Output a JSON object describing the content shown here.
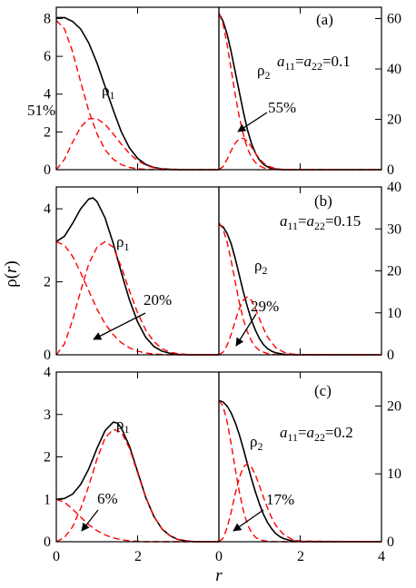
{
  "figure": {
    "ylabel": "ρ(r)",
    "xlabel": "r",
    "x_ticks": [
      "0",
      "2",
      "4"
    ]
  },
  "chart_data": [
    {
      "type": "line",
      "panel": "(a)",
      "side": "left",
      "xlim": [
        0,
        4
      ],
      "ylim": [
        0,
        8.6
      ],
      "yticks": [
        0,
        2,
        4,
        6,
        8
      ],
      "curve_label": "ρ₁",
      "annotation": "51%",
      "arrow": false,
      "series": [
        {
          "name": "ρ₁",
          "style": "solid",
          "color": "#000000",
          "x": [
            0,
            0.2,
            0.4,
            0.6,
            0.8,
            1.0,
            1.2,
            1.4,
            1.6,
            1.8,
            2.0,
            2.2,
            2.4,
            2.6,
            2.8,
            3.0,
            3.2,
            3.4,
            3.6,
            3.8,
            4.0
          ],
          "y": [
            8.05,
            8.05,
            7.85,
            7.45,
            6.7,
            5.65,
            4.4,
            3.15,
            2.0,
            1.15,
            0.6,
            0.28,
            0.12,
            0.05,
            0.02,
            0.01,
            0,
            0,
            0,
            0,
            0
          ]
        },
        {
          "name": "",
          "style": "dashed",
          "color": "#ff0000",
          "x": [
            0,
            0.2,
            0.4,
            0.6,
            0.8,
            1.0,
            1.2,
            1.4,
            1.6,
            1.8,
            2.0,
            2.2,
            2.4,
            2.6,
            2.8,
            3.0,
            3.2,
            3.4,
            3.6,
            3.8,
            4.0
          ],
          "y": [
            7.9,
            7.45,
            6.25,
            4.65,
            3.1,
            1.9,
            1.05,
            0.55,
            0.27,
            0.12,
            0.05,
            0.02,
            0.01,
            0,
            0,
            0,
            0,
            0,
            0,
            0,
            0
          ]
        },
        {
          "name": "",
          "style": "dashed",
          "color": "#ff0000",
          "x": [
            0,
            0.2,
            0.4,
            0.6,
            0.8,
            1.0,
            1.2,
            1.4,
            1.6,
            1.8,
            2.0,
            2.2,
            2.4,
            2.6,
            2.8,
            3.0,
            3.2,
            3.4,
            3.6,
            3.8,
            4.0
          ],
          "y": [
            0,
            0.55,
            1.45,
            2.25,
            2.7,
            2.7,
            2.4,
            1.9,
            1.35,
            0.85,
            0.48,
            0.24,
            0.1,
            0.04,
            0.01,
            0,
            0,
            0,
            0,
            0,
            0
          ]
        }
      ]
    },
    {
      "type": "line",
      "panel": "(a)",
      "side": "right",
      "xlim": [
        0,
        4
      ],
      "ylim": [
        0,
        64.5
      ],
      "yticks": [
        0,
        20,
        40,
        60
      ],
      "curve_label": "ρ₂",
      "param_label": "a₁₁=a₂₂=0.1",
      "annotation": "55%",
      "arrow": true,
      "series": [
        {
          "name": "ρ₂",
          "style": "solid",
          "color": "#000000",
          "x": [
            0,
            0.1,
            0.2,
            0.3,
            0.4,
            0.5,
            0.6,
            0.7,
            0.8,
            0.9,
            1.0,
            1.1,
            1.2,
            1.3,
            1.4,
            1.6,
            1.8,
            2.0,
            2.4,
            3.0,
            4.0
          ],
          "y": [
            62,
            59,
            54,
            47,
            39,
            31,
            23,
            16,
            10.5,
            6.5,
            3.8,
            2.1,
            1.1,
            0.55,
            0.25,
            0.05,
            0.01,
            0,
            0,
            0,
            0
          ]
        },
        {
          "name": "",
          "style": "dashed",
          "color": "#ff0000",
          "x": [
            0,
            0.1,
            0.2,
            0.3,
            0.4,
            0.5,
            0.6,
            0.7,
            0.8,
            0.9,
            1.0,
            1.1,
            1.2,
            1.4,
            1.6,
            2.0,
            4.0
          ],
          "y": [
            62,
            58,
            50,
            40,
            30,
            21,
            14,
            8.5,
            5,
            2.8,
            1.5,
            0.75,
            0.35,
            0.07,
            0.01,
            0,
            0
          ]
        },
        {
          "name": "",
          "style": "dashed",
          "color": "#ff0000",
          "x": [
            0,
            0.1,
            0.2,
            0.3,
            0.4,
            0.5,
            0.6,
            0.7,
            0.8,
            0.9,
            1.0,
            1.1,
            1.2,
            1.4,
            1.6,
            2.0,
            4.0
          ],
          "y": [
            0,
            1.2,
            4,
            7.5,
            10.5,
            12.3,
            12.5,
            11.3,
            9,
            6.5,
            4.3,
            2.6,
            1.5,
            0.4,
            0.08,
            0,
            0
          ]
        }
      ]
    },
    {
      "type": "line",
      "panel": "(b)",
      "side": "left",
      "xlim": [
        0,
        4
      ],
      "ylim": [
        0,
        4.6
      ],
      "yticks": [
        0,
        2,
        4
      ],
      "curve_label": "ρ₁",
      "annotation": "20%",
      "arrow": true,
      "series": [
        {
          "name": "ρ₁",
          "style": "solid",
          "color": "#000000",
          "x": [
            0,
            0.2,
            0.4,
            0.6,
            0.8,
            0.9,
            1.0,
            1.2,
            1.4,
            1.6,
            1.8,
            2.0,
            2.2,
            2.4,
            2.6,
            2.8,
            3.0,
            3.2,
            3.4,
            3.6,
            4.0
          ],
          "y": [
            3.1,
            3.25,
            3.6,
            4.0,
            4.27,
            4.3,
            4.2,
            3.75,
            3.05,
            2.25,
            1.5,
            0.9,
            0.48,
            0.23,
            0.1,
            0.04,
            0.01,
            0,
            0,
            0,
            0
          ]
        },
        {
          "name": "",
          "style": "dashed",
          "color": "#ff0000",
          "x": [
            0,
            0.2,
            0.4,
            0.6,
            0.8,
            1.0,
            1.2,
            1.4,
            1.6,
            1.8,
            2.0,
            2.2,
            2.4,
            2.6,
            2.8,
            3.0,
            4.0
          ],
          "y": [
            3.1,
            3.0,
            2.7,
            2.25,
            1.75,
            1.25,
            0.85,
            0.55,
            0.33,
            0.19,
            0.1,
            0.05,
            0.02,
            0.01,
            0,
            0,
            0
          ]
        },
        {
          "name": "",
          "style": "dashed",
          "color": "#ff0000",
          "x": [
            0,
            0.2,
            0.4,
            0.6,
            0.8,
            1.0,
            1.2,
            1.4,
            1.6,
            1.8,
            2.0,
            2.2,
            2.4,
            2.6,
            2.8,
            3.0,
            3.2,
            3.4,
            4.0
          ],
          "y": [
            0,
            0.3,
            0.95,
            1.75,
            2.5,
            2.95,
            3.1,
            2.95,
            2.4,
            1.75,
            1.15,
            0.68,
            0.36,
            0.17,
            0.07,
            0.03,
            0.01,
            0,
            0
          ]
        }
      ]
    },
    {
      "type": "line",
      "panel": "(b)",
      "side": "right",
      "xlim": [
        0,
        4
      ],
      "ylim": [
        0,
        40
      ],
      "yticks": [
        0,
        10,
        20,
        30,
        40
      ],
      "curve_label": "ρ₂",
      "param_label": "a₁₁=a₂₂=0.15",
      "annotation": "29%",
      "arrow": true,
      "series": [
        {
          "name": "ρ₂",
          "style": "solid",
          "color": "#000000",
          "x": [
            0,
            0.1,
            0.2,
            0.3,
            0.4,
            0.5,
            0.6,
            0.7,
            0.8,
            0.9,
            1.0,
            1.1,
            1.2,
            1.3,
            1.4,
            1.6,
            1.8,
            2.0,
            2.4,
            3.0,
            4.0
          ],
          "y": [
            31,
            30.5,
            29,
            26.5,
            23,
            19,
            15,
            11.5,
            8.3,
            5.8,
            3.8,
            2.4,
            1.45,
            0.85,
            0.48,
            0.13,
            0.03,
            0,
            0,
            0,
            0
          ]
        },
        {
          "name": "",
          "style": "dashed",
          "color": "#ff0000",
          "x": [
            0,
            0.1,
            0.2,
            0.3,
            0.4,
            0.5,
            0.6,
            0.7,
            0.8,
            0.9,
            1.0,
            1.2,
            1.4,
            1.6,
            2.0,
            4.0
          ],
          "y": [
            31.5,
            30,
            27,
            22.5,
            17.5,
            12.5,
            8.5,
            5.5,
            3.3,
            1.9,
            1.0,
            0.25,
            0.05,
            0.01,
            0,
            0
          ]
        },
        {
          "name": "",
          "style": "dashed",
          "color": "#ff0000",
          "x": [
            0,
            0.1,
            0.2,
            0.3,
            0.4,
            0.5,
            0.6,
            0.7,
            0.8,
            0.9,
            1.0,
            1.1,
            1.2,
            1.4,
            1.6,
            1.8,
            2.0,
            4.0
          ],
          "y": [
            0,
            0.6,
            2.2,
            4.8,
            8,
            11,
            13,
            13.8,
            13,
            11,
            8.5,
            6.2,
            4.2,
            1.7,
            0.6,
            0.18,
            0.05,
            0
          ]
        }
      ]
    },
    {
      "type": "line",
      "panel": "(c)",
      "side": "left",
      "xlim": [
        0,
        4
      ],
      "ylim": [
        0,
        4
      ],
      "yticks": [
        0,
        1,
        2,
        3,
        4
      ],
      "curve_label": "ρ₁",
      "annotation": "6%",
      "arrow": true,
      "series": [
        {
          "name": "ρ₁",
          "style": "solid",
          "color": "#000000",
          "x": [
            0,
            0.2,
            0.4,
            0.6,
            0.8,
            1.0,
            1.2,
            1.4,
            1.5,
            1.6,
            1.8,
            2.0,
            2.2,
            2.4,
            2.6,
            2.8,
            3.0,
            3.2,
            3.4,
            3.6,
            4.0
          ],
          "y": [
            1.0,
            1.02,
            1.12,
            1.35,
            1.72,
            2.2,
            2.62,
            2.82,
            2.8,
            2.68,
            2.25,
            1.65,
            1.05,
            0.6,
            0.3,
            0.14,
            0.05,
            0.02,
            0,
            0,
            0
          ]
        },
        {
          "name": "",
          "style": "dashed",
          "color": "#ff0000",
          "x": [
            0,
            0.2,
            0.4,
            0.6,
            0.8,
            1.0,
            1.2,
            1.4,
            1.6,
            1.8,
            2.0,
            2.2,
            2.4,
            2.6,
            2.8,
            3.0,
            4.0
          ],
          "y": [
            1.0,
            0.93,
            0.77,
            0.58,
            0.4,
            0.26,
            0.16,
            0.09,
            0.05,
            0.02,
            0.01,
            0,
            0,
            0,
            0,
            0,
            0
          ]
        },
        {
          "name": "",
          "style": "dashed",
          "color": "#ff0000",
          "x": [
            0,
            0.2,
            0.4,
            0.6,
            0.8,
            1.0,
            1.2,
            1.4,
            1.6,
            1.8,
            2.0,
            2.2,
            2.4,
            2.6,
            2.8,
            3.0,
            3.2,
            3.4,
            4.0
          ],
          "y": [
            0,
            0.1,
            0.35,
            0.78,
            1.32,
            1.95,
            2.45,
            2.65,
            2.58,
            2.2,
            1.62,
            1.05,
            0.6,
            0.3,
            0.14,
            0.05,
            0.02,
            0,
            0
          ]
        }
      ]
    },
    {
      "type": "line",
      "panel": "(c)",
      "side": "right",
      "xlim": [
        0,
        4
      ],
      "ylim": [
        0,
        25
      ],
      "yticks": [
        0,
        10,
        20
      ],
      "curve_label": "ρ₂",
      "param_label": "a₁₁=a₂₂=0.2",
      "annotation": "17%",
      "arrow": true,
      "series": [
        {
          "name": "ρ₂",
          "style": "solid",
          "color": "#000000",
          "x": [
            0,
            0.1,
            0.2,
            0.3,
            0.4,
            0.5,
            0.6,
            0.7,
            0.8,
            0.9,
            1.0,
            1.1,
            1.2,
            1.3,
            1.4,
            1.5,
            1.6,
            1.8,
            2.0,
            2.4,
            4.0
          ],
          "y": [
            20.8,
            20.6,
            20,
            19,
            17.6,
            15.8,
            13.7,
            11.5,
            9.3,
            7.3,
            5.5,
            4.0,
            2.8,
            1.9,
            1.2,
            0.75,
            0.45,
            0.12,
            0.03,
            0,
            0
          ]
        },
        {
          "name": "",
          "style": "dashed",
          "color": "#ff0000",
          "x": [
            0,
            0.1,
            0.2,
            0.3,
            0.4,
            0.5,
            0.6,
            0.7,
            0.8,
            0.9,
            1.0,
            1.2,
            1.4,
            1.6,
            2.0,
            4.0
          ],
          "y": [
            20.8,
            20,
            17.8,
            14.5,
            10.8,
            7.4,
            4.6,
            2.6,
            1.35,
            0.65,
            0.3,
            0.05,
            0.01,
            0,
            0,
            0
          ]
        },
        {
          "name": "",
          "style": "dashed",
          "color": "#ff0000",
          "x": [
            0,
            0.1,
            0.2,
            0.3,
            0.4,
            0.5,
            0.6,
            0.7,
            0.8,
            0.9,
            1.0,
            1.1,
            1.2,
            1.3,
            1.4,
            1.6,
            1.8,
            2.0,
            4.0
          ],
          "y": [
            0,
            0.5,
            2.0,
            4.3,
            7.0,
            9.4,
            11.0,
            11.5,
            11.0,
            9.8,
            8.2,
            6.5,
            4.9,
            3.5,
            2.4,
            1.0,
            0.35,
            0.1,
            0
          ]
        }
      ]
    }
  ]
}
